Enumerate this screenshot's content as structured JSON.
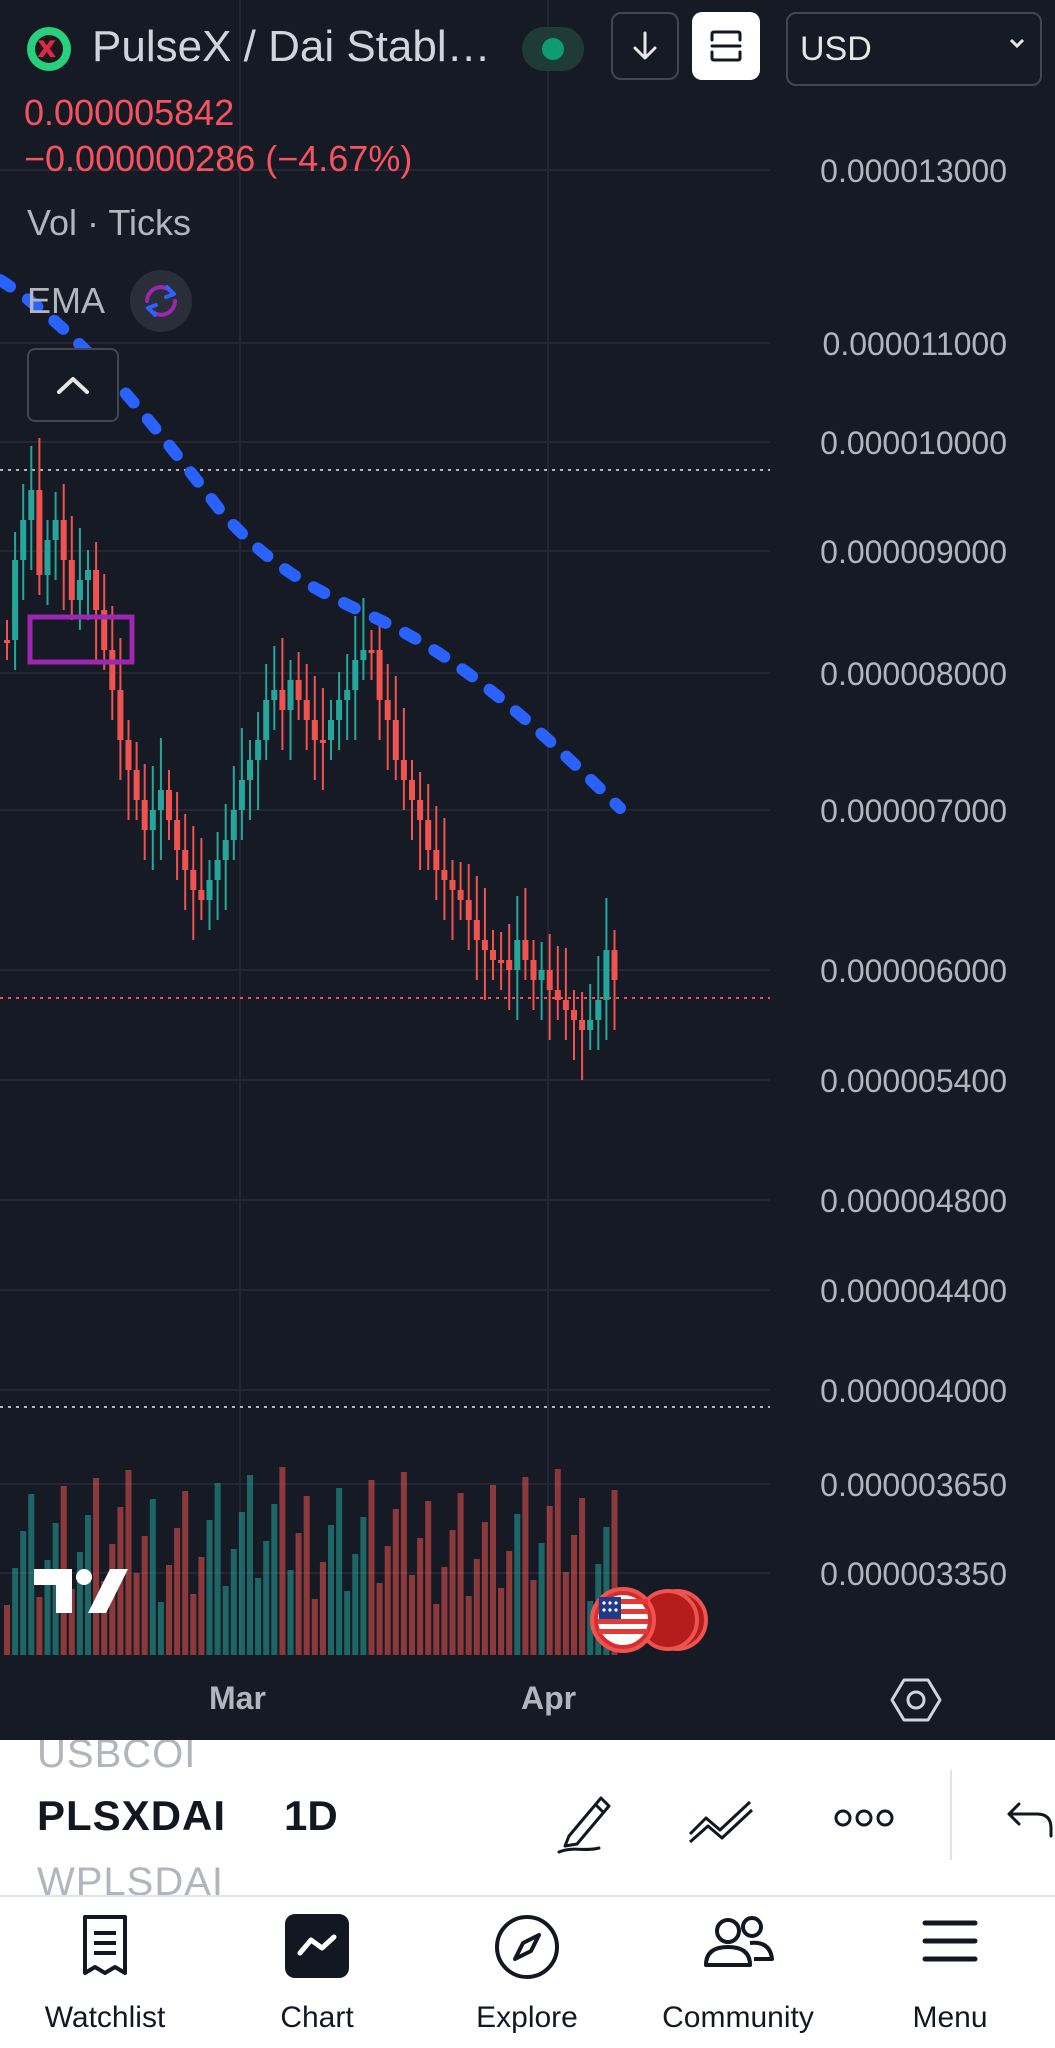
{
  "header": {
    "symbol_title": "PulseX / Dai Stabl…",
    "logo_glyph": "x",
    "currency": "USD"
  },
  "quote": {
    "price": "0.000005842",
    "change": "−0.000000286 (−4.67%)"
  },
  "indicators": {
    "vol_label": "Vol · Ticks",
    "ema_label": "EMA"
  },
  "price_axis": [
    "0.000013000",
    "0.000011000",
    "0.000010000",
    "0.000009000",
    "0.000008000",
    "0.000007000",
    "0.000006000",
    "0.000005400",
    "0.000004800",
    "0.000004400",
    "0.000004000",
    "0.000003650",
    "0.000003350"
  ],
  "time_axis": [
    "Mar",
    "Apr"
  ],
  "colors": {
    "background": "#161a25",
    "up": "#26a69a",
    "down": "#ef5350",
    "ema_line": "#2962ff",
    "box": "#9c27b0"
  },
  "toolbar": {
    "symbol_prev": "USBCOI",
    "symbol": "PLSXDAI",
    "symbol_next": "WPLSDAI",
    "interval": "1D"
  },
  "bottom_nav": [
    {
      "label": "Watchlist",
      "icon": "watchlist-icon"
    },
    {
      "label": "Chart",
      "icon": "chart-icon"
    },
    {
      "label": "Explore",
      "icon": "compass-icon"
    },
    {
      "label": "Community",
      "icon": "community-icon"
    },
    {
      "label": "Menu",
      "icon": "menu-icon"
    }
  ]
}
